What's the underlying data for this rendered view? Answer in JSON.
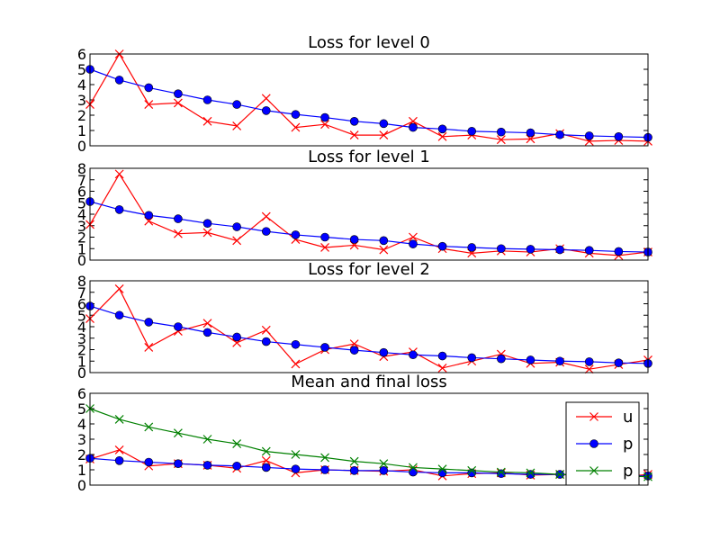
{
  "chart_data": [
    {
      "type": "line",
      "title": "Loss for level 0",
      "ylim": [
        0,
        6
      ],
      "yticks": [
        0,
        1,
        2,
        3,
        4,
        5,
        6
      ],
      "x": [
        0,
        1,
        2,
        3,
        4,
        5,
        6,
        7,
        8,
        9,
        10,
        11,
        12,
        13,
        14,
        15,
        16,
        17,
        18,
        19
      ],
      "series": [
        {
          "color": "#ff0000",
          "marker": "x",
          "values": [
            2.7,
            6.0,
            2.7,
            2.8,
            1.6,
            1.3,
            3.1,
            1.2,
            1.4,
            0.7,
            0.7,
            1.6,
            0.6,
            0.7,
            0.4,
            0.45,
            0.8,
            0.3,
            0.35,
            0.3
          ]
        },
        {
          "color": "#0000ff",
          "marker": "o",
          "values": [
            5.0,
            4.3,
            3.8,
            3.4,
            3.0,
            2.7,
            2.3,
            2.05,
            1.85,
            1.6,
            1.45,
            1.2,
            1.1,
            0.95,
            0.9,
            0.85,
            0.72,
            0.65,
            0.6,
            0.55
          ]
        }
      ]
    },
    {
      "type": "line",
      "title": "Loss for level 1",
      "ylim": [
        0,
        8
      ],
      "yticks": [
        0,
        1,
        2,
        3,
        4,
        5,
        6,
        7,
        8
      ],
      "x": [
        0,
        1,
        2,
        3,
        4,
        5,
        6,
        7,
        8,
        9,
        10,
        11,
        12,
        13,
        14,
        15,
        16,
        17,
        18,
        19
      ],
      "series": [
        {
          "color": "#ff0000",
          "marker": "x",
          "values": [
            3.1,
            7.5,
            3.4,
            2.3,
            2.4,
            1.7,
            3.8,
            1.8,
            1.1,
            1.3,
            0.9,
            2.0,
            1.0,
            0.6,
            0.8,
            0.7,
            1.0,
            0.6,
            0.4,
            0.7
          ]
        },
        {
          "color": "#0000ff",
          "marker": "o",
          "values": [
            5.1,
            4.4,
            3.9,
            3.6,
            3.2,
            2.9,
            2.5,
            2.2,
            2.0,
            1.8,
            1.7,
            1.4,
            1.2,
            1.1,
            1.0,
            0.95,
            0.9,
            0.85,
            0.75,
            0.7
          ]
        }
      ]
    },
    {
      "type": "line",
      "title": "Loss for level 2",
      "ylim": [
        0,
        8
      ],
      "yticks": [
        0,
        1,
        2,
        3,
        4,
        5,
        6,
        7,
        8
      ],
      "x": [
        0,
        1,
        2,
        3,
        4,
        5,
        6,
        7,
        8,
        9,
        10,
        11,
        12,
        13,
        14,
        15,
        16,
        17,
        18,
        19
      ],
      "series": [
        {
          "color": "#ff0000",
          "marker": "x",
          "values": [
            4.7,
            7.3,
            2.2,
            3.6,
            4.3,
            2.6,
            3.7,
            0.75,
            2.0,
            2.5,
            1.4,
            1.8,
            0.4,
            1.0,
            1.6,
            0.8,
            0.9,
            0.3,
            0.7,
            1.1
          ]
        },
        {
          "color": "#0000ff",
          "marker": "o",
          "values": [
            5.8,
            5.0,
            4.4,
            4.0,
            3.5,
            3.1,
            2.7,
            2.45,
            2.2,
            1.95,
            1.75,
            1.55,
            1.45,
            1.3,
            1.2,
            1.1,
            1.0,
            0.95,
            0.85,
            0.8
          ]
        }
      ]
    },
    {
      "type": "line",
      "title": "Mean and final loss",
      "ylim": [
        0,
        6
      ],
      "yticks": [
        0,
        1,
        2,
        3,
        4,
        5,
        6
      ],
      "x": [
        0,
        1,
        2,
        3,
        4,
        5,
        6,
        7,
        8,
        9,
        10,
        11,
        12,
        13,
        14,
        15,
        16,
        17,
        18,
        19
      ],
      "legend_position": "right",
      "series": [
        {
          "name": "u",
          "color": "#ff0000",
          "marker": "x",
          "values": [
            1.7,
            2.3,
            1.25,
            1.4,
            1.3,
            1.1,
            1.6,
            0.8,
            1.0,
            0.95,
            0.9,
            1.0,
            0.6,
            0.75,
            0.8,
            0.65,
            0.7,
            0.55,
            0.5,
            0.7
          ]
        },
        {
          "name": "p",
          "color": "#0000ff",
          "marker": "o",
          "values": [
            1.75,
            1.6,
            1.5,
            1.4,
            1.3,
            1.25,
            1.15,
            1.05,
            1.0,
            0.95,
            0.95,
            0.85,
            0.8,
            0.8,
            0.75,
            0.7,
            0.7,
            0.65,
            0.62,
            0.6
          ]
        },
        {
          "name": "p",
          "color": "#008000",
          "marker": "x",
          "values": [
            5.0,
            4.3,
            3.8,
            3.4,
            3.0,
            2.7,
            2.2,
            2.0,
            1.8,
            1.55,
            1.4,
            1.15,
            1.05,
            0.95,
            0.85,
            0.8,
            0.7,
            0.65,
            0.6,
            0.55
          ]
        }
      ]
    }
  ]
}
